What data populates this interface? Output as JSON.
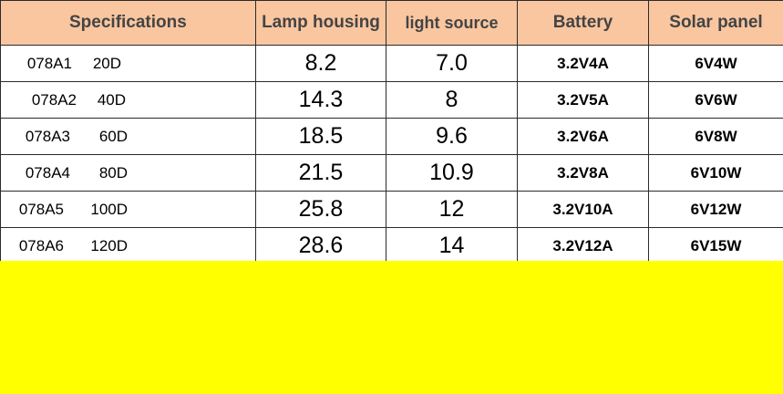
{
  "headers": {
    "spec": "Specifications",
    "lamp": "Lamp housing",
    "light": "light source",
    "battery": "Battery",
    "solar": "Solar panel"
  },
  "rows": [
    {
      "code": "078A1",
      "deg": "20D",
      "lamp": "8.2",
      "light": "7.0",
      "battery": "3.2V4A",
      "solar": "6V4W"
    },
    {
      "code": "078A2",
      "deg": "40D",
      "lamp": "14.3",
      "light": "8",
      "battery": "3.2V5A",
      "solar": "6V6W"
    },
    {
      "code": "078A3",
      "deg": "60D",
      "lamp": "18.5",
      "light": "9.6",
      "battery": "3.2V6A",
      "solar": "6V8W"
    },
    {
      "code": "078A4",
      "deg": "80D",
      "lamp": "21.5",
      "light": "10.9",
      "battery": "3.2V8A",
      "solar": "6V10W"
    },
    {
      "code": "078A5",
      "deg": "100D",
      "lamp": "25.8",
      "light": "12",
      "battery": "3.2V10A",
      "solar": "6V12W"
    },
    {
      "code": "078A6",
      "deg": "120D",
      "lamp": "28.6",
      "light": "14",
      "battery": "3.2V12A",
      "solar": "6V15W"
    }
  ],
  "colors": {
    "header_bg": "#f9c6a0",
    "background": "#ffff00",
    "cell_bg": "#ffffff",
    "border": "#2b2b2b"
  }
}
